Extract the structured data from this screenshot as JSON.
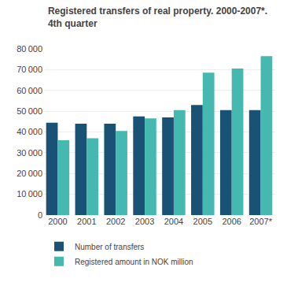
{
  "chart_data": {
    "type": "bar",
    "title": "Registered transfers of real property. 2000-2007*.",
    "subtitle": "4th quarter",
    "categories": [
      "2000",
      "2001",
      "2002",
      "2003",
      "2004",
      "2005",
      "2006",
      "2007*"
    ],
    "series": [
      {
        "name": "Number of transfers",
        "color": "#1a5276",
        "values": [
          44500,
          44000,
          44000,
          47500,
          47000,
          53000,
          50500,
          50500
        ]
      },
      {
        "name": "Registered amount in NOK million",
        "color": "#45b8b0",
        "values": [
          36000,
          37000,
          40500,
          46500,
          50500,
          68500,
          70500,
          76500
        ]
      }
    ],
    "ylim": [
      0,
      80000
    ],
    "yticks": [
      0,
      {
        "value": 10000,
        "label": "10 000"
      },
      {
        "value": 20000,
        "label": "20 000"
      },
      {
        "value": 30000,
        "label": "30 000"
      },
      {
        "value": 40000,
        "label": "40 000"
      },
      {
        "value": 50000,
        "label": "50 000"
      },
      {
        "value": 60000,
        "label": "60 000"
      },
      {
        "value": 70000,
        "label": "70 000"
      },
      {
        "value": 80000,
        "label": "80 000"
      }
    ],
    "grid": true,
    "legend": "lower left"
  }
}
